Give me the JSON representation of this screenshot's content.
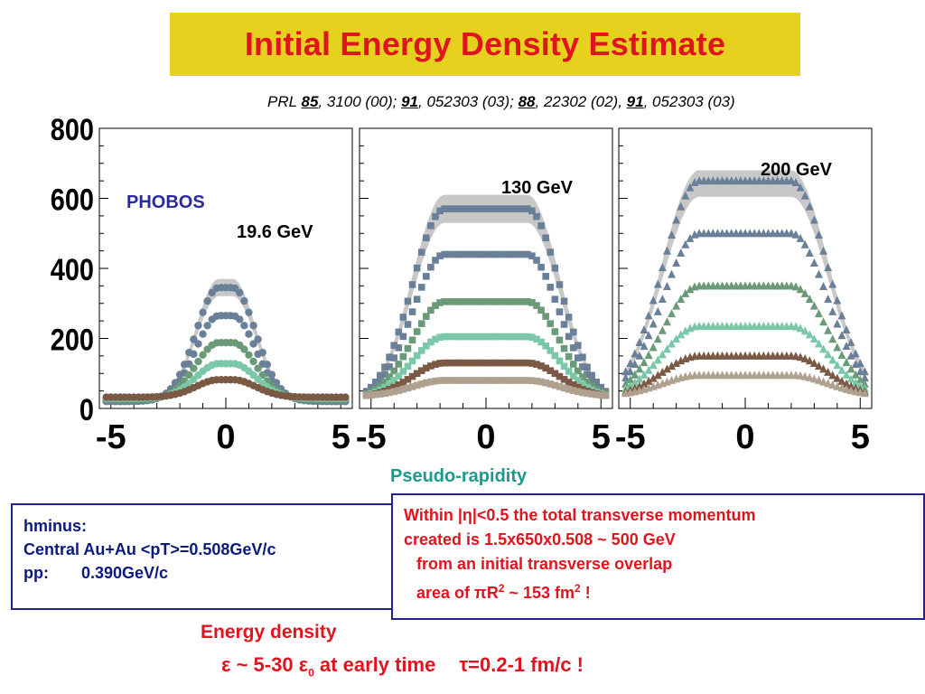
{
  "title": "Initial Energy Density Estimate",
  "reference": {
    "prefix": "PRL ",
    "v1": "85",
    "p1": ", 3100 (00); ",
    "v2": "91",
    "p2": ", 052303 (03); ",
    "v3": "88",
    "p3": ", 22302 (02), ",
    "v4": "91",
    "p4": ", 052303 (03)"
  },
  "chart_data": {
    "type": "scatter",
    "xlabel": "Pseudo-rapidity",
    "ylim": [
      0,
      800
    ],
    "y_ticks": [
      "800",
      "600",
      "400",
      "200",
      "0"
    ],
    "x_ticks": [
      "-5",
      "0",
      "5"
    ],
    "experiment_label": "PHOBOS",
    "panels": [
      {
        "label": "19.6 GeV",
        "marker": "circle",
        "xlim": [
          -5.5,
          5.5
        ],
        "plateau": 0.3,
        "falloff": 1.0,
        "series": [
          {
            "plateau_value": 345,
            "color": "#6a7f98"
          },
          {
            "plateau_value": 265,
            "color": "#6a7f98"
          },
          {
            "plateau_value": 188,
            "color": "#6a9a78"
          },
          {
            "plateau_value": 128,
            "color": "#7ac8a8"
          },
          {
            "plateau_value": 82,
            "color": "#7a5a45"
          }
        ],
        "band_plateau": 370
      },
      {
        "label": "130 GeV",
        "marker": "square",
        "xlim": [
          -5.5,
          5.5
        ],
        "plateau": 1.8,
        "falloff": 1.4,
        "series": [
          {
            "plateau_value": 570,
            "color": "#6a7f98"
          },
          {
            "plateau_value": 440,
            "color": "#6a7f98"
          },
          {
            "plateau_value": 305,
            "color": "#6a9a78"
          },
          {
            "plateau_value": 205,
            "color": "#7ac8a8"
          },
          {
            "plateau_value": 130,
            "color": "#7a5a45"
          },
          {
            "plateau_value": 80,
            "color": "#b0a090"
          }
        ],
        "band_plateau": 610
      },
      {
        "label": "200 GeV",
        "marker": "triangle",
        "xlim": [
          -5.5,
          5.5
        ],
        "plateau": 2.0,
        "falloff": 1.6,
        "series": [
          {
            "plateau_value": 650,
            "color": "#6a7f98"
          },
          {
            "plateau_value": 500,
            "color": "#6a7f98"
          },
          {
            "plateau_value": 350,
            "color": "#6a9a78"
          },
          {
            "plateau_value": 235,
            "color": "#7ac8a8"
          },
          {
            "plateau_value": 150,
            "color": "#7a5a45"
          },
          {
            "plateau_value": 95,
            "color": "#b0a090"
          }
        ],
        "band_plateau": 680
      }
    ]
  },
  "info_left": {
    "line1": "hminus:",
    "line2": "Central Au+Au <pT>=0.508GeV/c",
    "line3_a": "pp:",
    "line3_b": "0.390GeV/c"
  },
  "info_right": {
    "line1_a": "Within |",
    "eta": "η",
    "line1_b": "|<0.5 the total transverse momentum",
    "line2": "created is 1.5x650x0.508 ~ 500 GeV",
    "line3": "from an initial transverse overlap",
    "line4_a": "area of ",
    "pi": "π",
    "line4_b": "R",
    "sq": "2",
    "line4_c": " ~ 153 fm",
    "sq2": "2",
    "line4_d": " !"
  },
  "energy": {
    "line1": "Energy density",
    "eps": "ε",
    "mid": " ~ 5-30 ",
    "eps0": "ε",
    "sub0": "0",
    "early": " at early time",
    "tau": "τ",
    "tail": "=0.2-1 fm/c !"
  }
}
